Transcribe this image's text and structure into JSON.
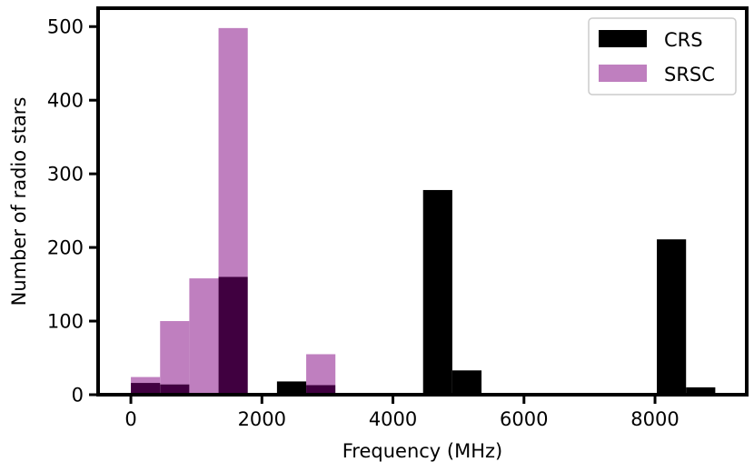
{
  "chart_data": {
    "type": "bar",
    "subtype": "histogram-overlay",
    "title": "",
    "xlabel": "Frequency (MHz)",
    "ylabel": "Number of radio stars",
    "xlim": [
      -500,
      9400
    ],
    "ylim": [
      0,
      525
    ],
    "xticks": [
      0,
      2000,
      4000,
      6000,
      8000
    ],
    "yticks": [
      0,
      100,
      200,
      300,
      400,
      500
    ],
    "bin_edges": [
      0,
      446,
      892,
      1338,
      1784,
      2230,
      2676,
      3122,
      3568,
      4014,
      4460,
      4906,
      5352,
      5798,
      6244,
      6690,
      7136,
      7582,
      8028,
      8474,
      8920
    ],
    "grid": false,
    "legend_position": "top-right",
    "series": [
      {
        "name": "SRSC",
        "color": "#bf7fbf",
        "values": [
          24,
          100,
          158,
          498,
          0,
          0,
          55,
          0,
          0,
          0,
          0,
          0,
          0,
          0,
          0,
          0,
          0,
          0,
          0,
          0
        ]
      },
      {
        "name": "CRS",
        "color": "#000000",
        "values": [
          16,
          14,
          0,
          160,
          0,
          18,
          13,
          0,
          0,
          0,
          278,
          33,
          0,
          0,
          0,
          0,
          0,
          0,
          211,
          10
        ]
      }
    ],
    "overlap_color": "#400040"
  }
}
